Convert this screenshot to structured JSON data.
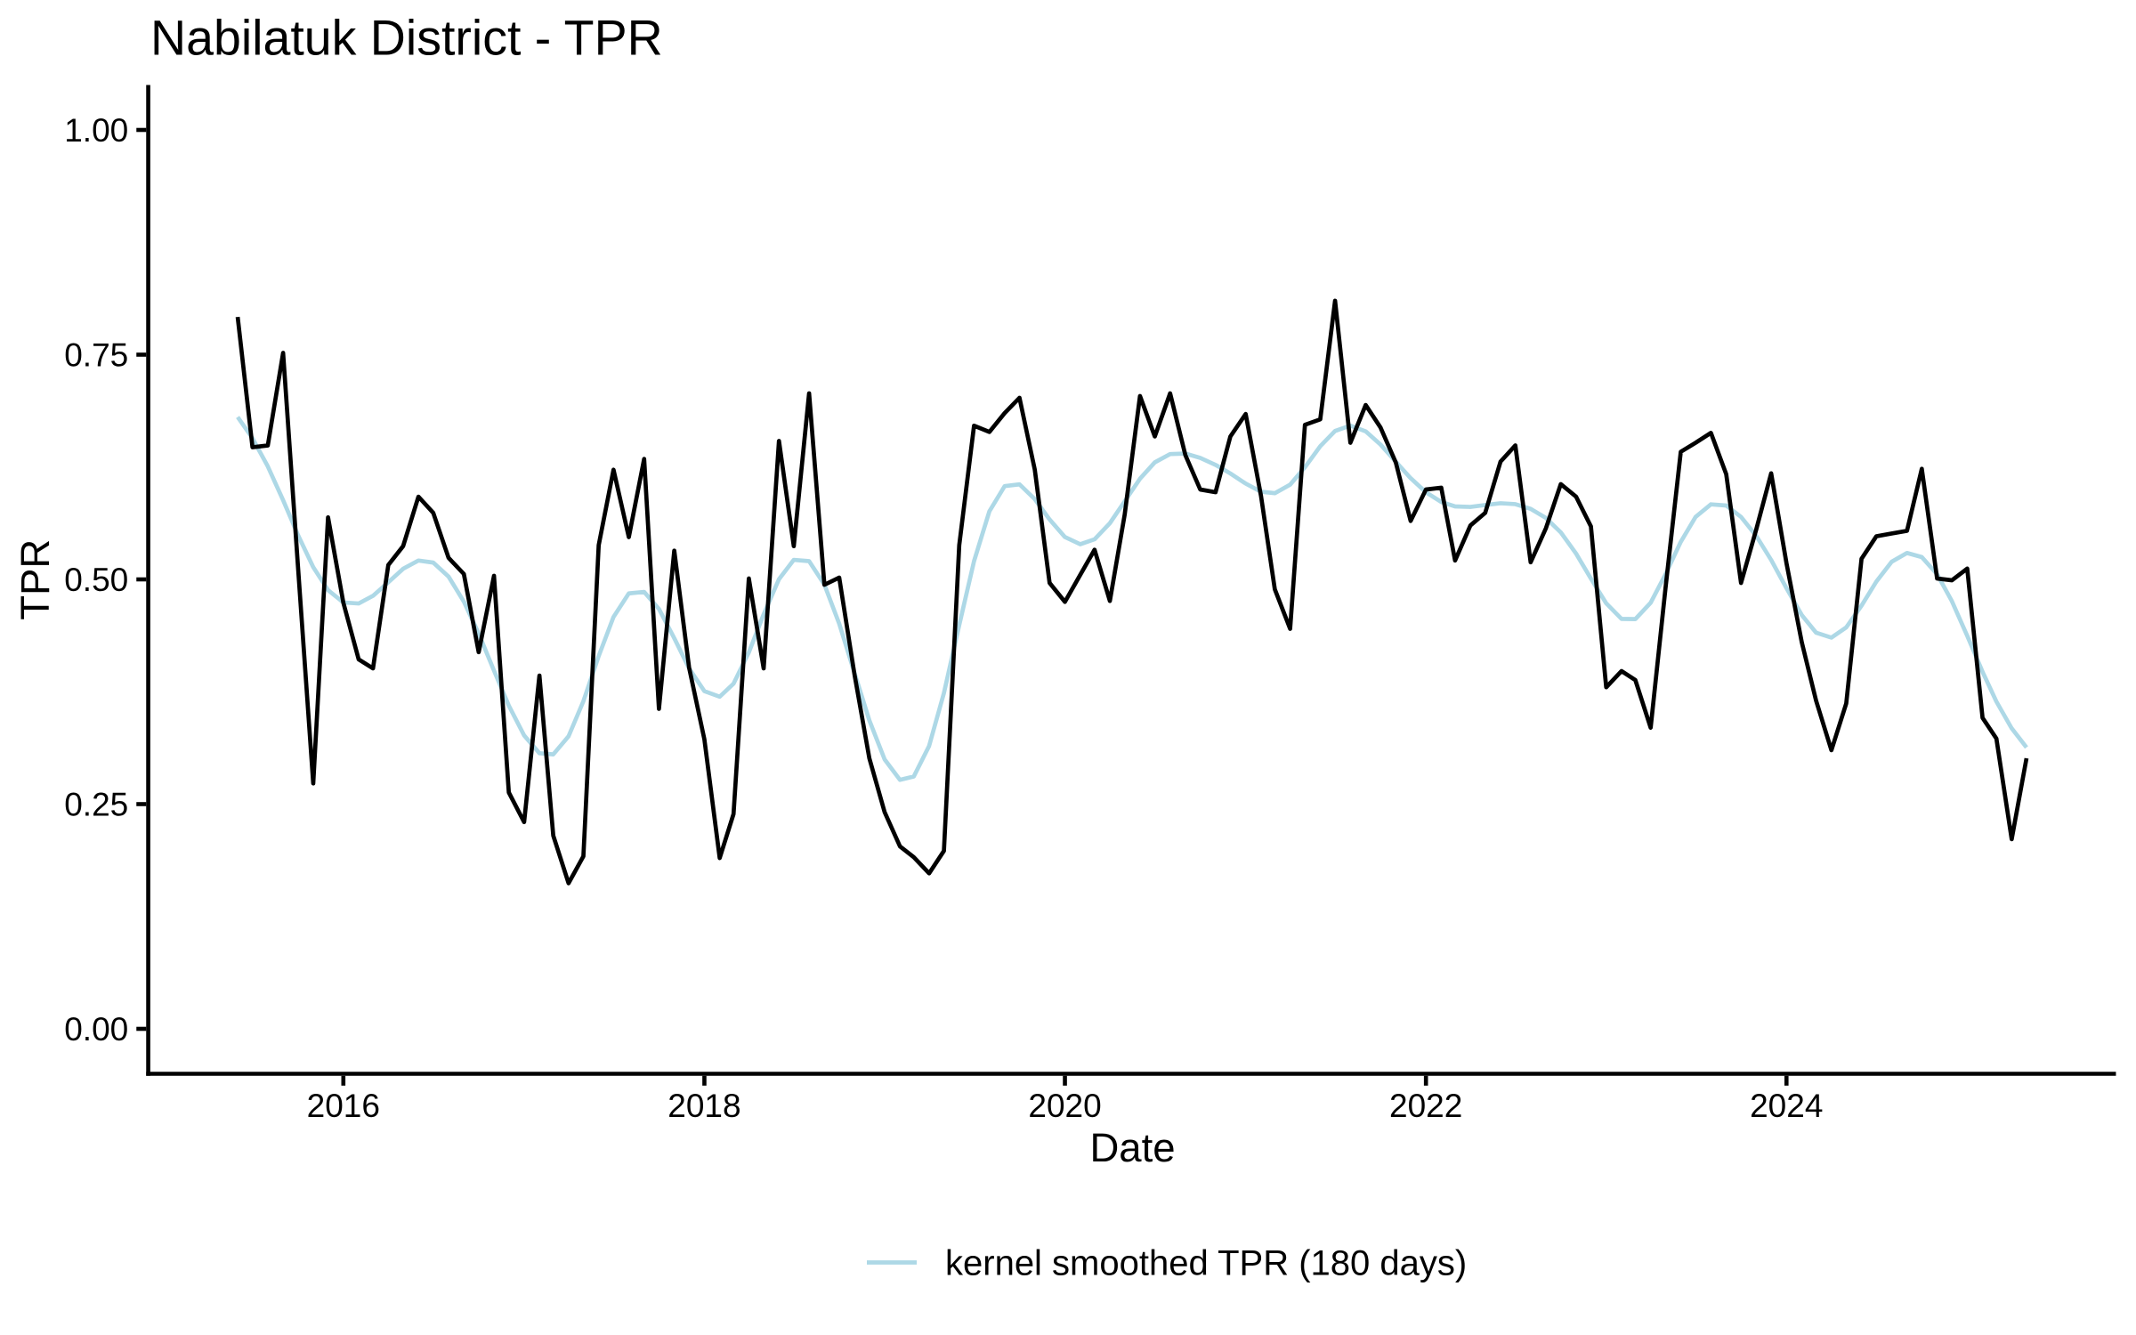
{
  "figure": {
    "title": "Nabilatuk District - TPR",
    "x_axis": {
      "label": "Date",
      "tick_labels": [
        "2016",
        "2018",
        "2020",
        "2022",
        "2024"
      ]
    },
    "y_axis": {
      "label": "TPR",
      "tick_labels": [
        "0.00",
        "0.25",
        "0.50",
        "0.75",
        "1.00"
      ]
    },
    "legend": {
      "items": [
        {
          "label": "kernel smoothed TPR (180 days)",
          "color": "#ADD8E6"
        }
      ]
    },
    "colors": {
      "tpr_line": "#000000",
      "smoothed_line": "#ADD8E6",
      "background": "#FFFFFF",
      "text": "#000000",
      "axis": "#000000"
    }
  },
  "chart_data": {
    "type": "line",
    "title": "Nabilatuk District - TPR",
    "xlabel": "Date",
    "ylabel": "TPR",
    "x": [
      "2015-06-01",
      "2015-07-01",
      "2015-08-01",
      "2015-09-01",
      "2015-10-01",
      "2015-11-01",
      "2015-12-01",
      "2016-01-01",
      "2016-02-01",
      "2016-03-01",
      "2016-04-01",
      "2016-05-01",
      "2016-06-01",
      "2016-07-01",
      "2016-08-01",
      "2016-09-01",
      "2016-10-01",
      "2016-11-01",
      "2016-12-01",
      "2017-01-01",
      "2017-02-01",
      "2017-03-01",
      "2017-04-01",
      "2017-05-01",
      "2017-06-01",
      "2017-07-01",
      "2017-08-01",
      "2017-09-01",
      "2017-10-01",
      "2017-11-01",
      "2017-12-01",
      "2018-01-01",
      "2018-02-01",
      "2018-03-01",
      "2018-04-01",
      "2018-05-01",
      "2018-06-01",
      "2018-07-01",
      "2018-08-01",
      "2018-09-01",
      "2018-10-01",
      "2018-11-01",
      "2018-12-01",
      "2019-01-01",
      "2019-02-01",
      "2019-03-01",
      "2019-04-01",
      "2019-05-01",
      "2019-06-01",
      "2019-07-01",
      "2019-08-01",
      "2019-09-01",
      "2019-10-01",
      "2019-11-01",
      "2019-12-01",
      "2020-01-01",
      "2020-02-01",
      "2020-03-01",
      "2020-04-01",
      "2020-05-01",
      "2020-06-01",
      "2020-07-01",
      "2020-08-01",
      "2020-09-01",
      "2020-10-01",
      "2020-11-01",
      "2020-12-01",
      "2021-01-01",
      "2021-02-01",
      "2021-03-01",
      "2021-04-01",
      "2021-05-01",
      "2021-06-01",
      "2021-07-01",
      "2021-08-01",
      "2021-09-01",
      "2021-10-01",
      "2021-11-01",
      "2021-12-01",
      "2022-01-01",
      "2022-02-01",
      "2022-03-01",
      "2022-04-01",
      "2022-05-01",
      "2022-06-01",
      "2022-07-01",
      "2022-08-01",
      "2022-09-01",
      "2022-10-01",
      "2022-11-01",
      "2022-12-01",
      "2023-01-01",
      "2023-02-01",
      "2023-03-01",
      "2023-04-01",
      "2023-05-01",
      "2023-06-01",
      "2023-07-01",
      "2023-08-01",
      "2023-09-01",
      "2023-10-01",
      "2023-11-01",
      "2023-12-01",
      "2024-01-01",
      "2024-02-01",
      "2024-03-01",
      "2024-04-01",
      "2024-05-01",
      "2024-06-01",
      "2024-07-01",
      "2024-08-01",
      "2024-09-01",
      "2024-10-01",
      "2024-11-01",
      "2024-12-01",
      "2025-01-01",
      "2025-02-01",
      "2025-03-01",
      "2025-04-01",
      "2025-05-01"
    ],
    "series": [
      {
        "name": "TPR",
        "color": "#000000",
        "values": [
          0.792,
          0.647,
          0.649,
          0.752,
          0.515,
          0.273,
          0.569,
          0.474,
          0.411,
          0.401,
          0.516,
          0.537,
          0.592,
          0.574,
          0.524,
          0.506,
          0.419,
          0.504,
          0.263,
          0.23,
          0.393,
          0.215,
          0.162,
          0.192,
          0.538,
          0.622,
          0.547,
          0.634,
          0.356,
          0.532,
          0.402,
          0.322,
          0.19,
          0.239,
          0.501,
          0.401,
          0.654,
          0.537,
          0.707,
          0.494,
          0.502,
          0.394,
          0.301,
          0.241,
          0.203,
          0.191,
          0.173,
          0.198,
          0.538,
          0.671,
          0.664,
          0.685,
          0.702,
          0.622,
          0.496,
          0.475,
          0.505,
          0.533,
          0.476,
          0.572,
          0.704,
          0.659,
          0.707,
          0.638,
          0.6,
          0.597,
          0.659,
          0.684,
          0.593,
          0.489,
          0.445,
          0.672,
          0.678,
          0.81,
          0.652,
          0.694,
          0.669,
          0.63,
          0.565,
          0.6,
          0.602,
          0.521,
          0.56,
          0.574,
          0.631,
          0.649,
          0.519,
          0.557,
          0.606,
          0.592,
          0.559,
          0.38,
          0.398,
          0.388,
          0.335,
          0.49,
          0.642,
          0.652,
          0.663,
          0.617,
          0.496,
          0.556,
          0.618,
          0.518,
          0.43,
          0.365,
          0.31,
          0.362,
          0.523,
          0.548,
          0.551,
          0.554,
          0.623,
          0.501,
          0.499,
          0.512,
          0.346,
          0.323,
          0.211,
          0.301
        ]
      },
      {
        "name": "kernel smoothed TPR (180 days)",
        "color": "#ADD8E6",
        "values": [
          0.6806,
          0.657,
          0.6257,
          0.5881,
          0.5495,
          0.5136,
          0.4881,
          0.4743,
          0.4732,
          0.4817,
          0.4968,
          0.5118,
          0.521,
          0.5187,
          0.5031,
          0.4752,
          0.4397,
          0.3985,
          0.3596,
          0.3264,
          0.3066,
          0.3053,
          0.3255,
          0.3645,
          0.4147,
          0.4582,
          0.4844,
          0.4861,
          0.4671,
          0.4346,
          0.401,
          0.3757,
          0.3695,
          0.384,
          0.4188,
          0.4611,
          0.5002,
          0.5217,
          0.5203,
          0.4942,
          0.4507,
          0.3959,
          0.3432,
          0.2997,
          0.277,
          0.2807,
          0.3147,
          0.3735,
          0.4492,
          0.5203,
          0.5757,
          0.6038,
          0.6057,
          0.5893,
          0.5666,
          0.5471,
          0.5391,
          0.5446,
          0.5625,
          0.5868,
          0.612,
          0.6302,
          0.6394,
          0.64,
          0.6352,
          0.6274,
          0.6178,
          0.6066,
          0.5975,
          0.5959,
          0.6054,
          0.6248,
          0.6481,
          0.6651,
          0.6711,
          0.6647,
          0.65,
          0.6309,
          0.6126,
          0.5969,
          0.5861,
          0.5812,
          0.5806,
          0.5827,
          0.5847,
          0.5837,
          0.5785,
          0.5683,
          0.5523,
          0.5287,
          0.5009,
          0.4734,
          0.4561,
          0.4558,
          0.474,
          0.5056,
          0.5418,
          0.5695,
          0.5835,
          0.5822,
          0.5695,
          0.5482,
          0.5216,
          0.4902,
          0.4603,
          0.4407,
          0.4352,
          0.4466,
          0.4708,
          0.4976,
          0.5196,
          0.5294,
          0.5248,
          0.5057,
          0.4757,
          0.4372,
          0.3972,
          0.3641,
          0.3343,
          0.3131
        ]
      }
    ],
    "ylim": [
      0.0,
      1.0
    ],
    "y_ticks": [
      0.0,
      0.25,
      0.5,
      0.75,
      1.0
    ],
    "x_ticks": [
      "2016-01-01",
      "2018-01-01",
      "2020-01-01",
      "2022-01-01",
      "2024-01-01"
    ],
    "x_tick_labels": [
      "2016",
      "2018",
      "2020",
      "2022",
      "2024"
    ],
    "grid": false,
    "legend_position": "bottom",
    "axis_expansion": 0.05
  }
}
